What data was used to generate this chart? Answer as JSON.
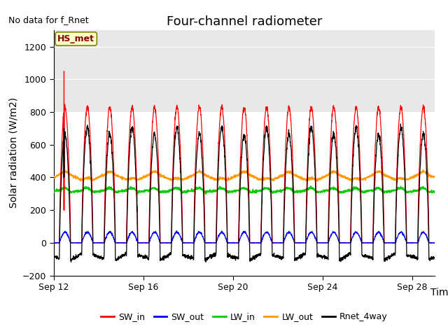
{
  "title": "Four-channel radiometer",
  "top_left_text": "No data for f_Rnet",
  "ylabel": "Solar radiation (W/m2)",
  "xlabel": "Time",
  "annotation_box": "HS_met",
  "ylim": [
    -200,
    1300
  ],
  "yticks": [
    -200,
    0,
    200,
    400,
    600,
    800,
    1000,
    1200
  ],
  "xtick_labels": [
    "Sep 12",
    "Sep 16",
    "Sep 20",
    "Sep 24",
    "Sep 28"
  ],
  "xtick_positions": [
    0,
    4,
    8,
    12,
    16
  ],
  "background_color": "#ffffff",
  "plot_bg_color": "#ffffff",
  "stripe_color": "#e8e8e8",
  "colors": {
    "SW_in": "#ff0000",
    "SW_out": "#0000ff",
    "LW_in": "#00cc00",
    "LW_out": "#ff9900",
    "Rnet_4way": "#000000"
  },
  "title_fontsize": 13,
  "label_fontsize": 10,
  "tick_fontsize": 9
}
